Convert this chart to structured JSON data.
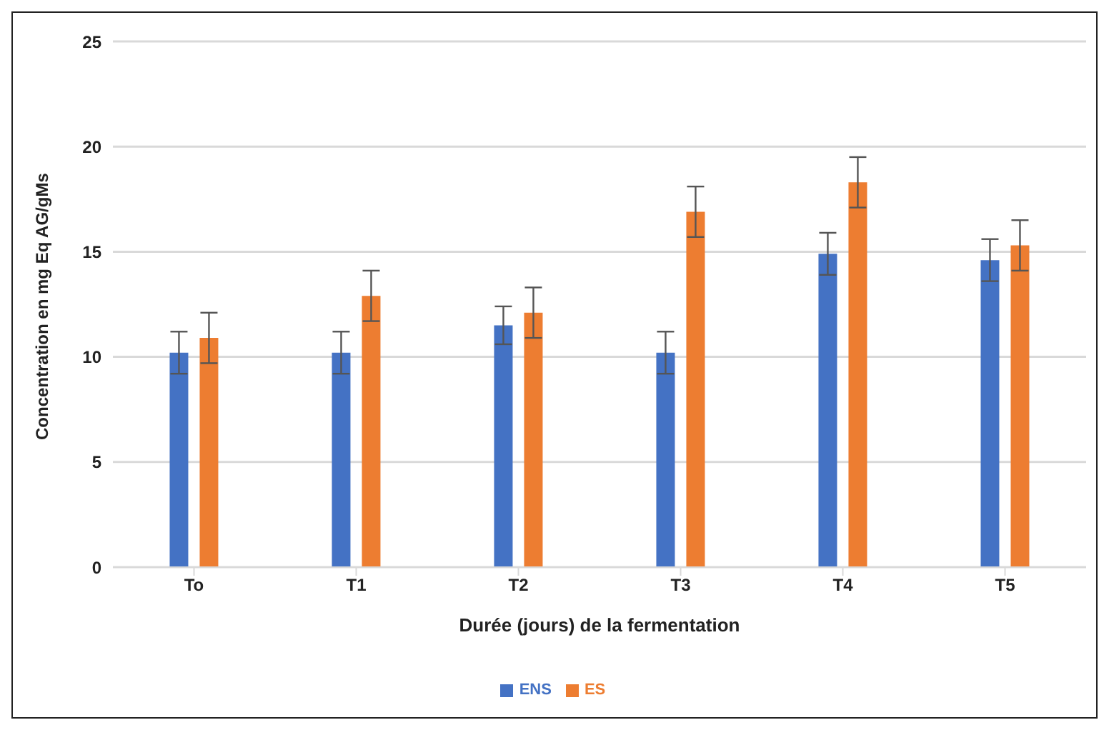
{
  "chart_data": {
    "type": "bar",
    "xlabel": "Durée (jours) de la fermentation",
    "ylabel": "Concentration en mg Eq AG/gMs",
    "categories": [
      "To",
      "T1",
      "T2",
      "T3",
      "T4",
      "T5"
    ],
    "series": [
      {
        "name": "ENS",
        "color": "#4472c4",
        "values": [
          10.2,
          10.2,
          11.5,
          10.2,
          14.9,
          14.6
        ],
        "errors": [
          1,
          1,
          0.9,
          1,
          1,
          1
        ]
      },
      {
        "name": "ES",
        "color": "#ed7d31",
        "values": [
          10.9,
          12.9,
          12.1,
          16.9,
          18.3,
          15.3
        ],
        "errors": [
          1.2,
          1.2,
          1.2,
          1.2,
          1.2,
          1.2
        ]
      }
    ],
    "ylim": [
      0,
      25
    ],
    "yticks": [
      0,
      5,
      10,
      15,
      20,
      25
    ],
    "grid": "y",
    "legend": "bottom"
  }
}
